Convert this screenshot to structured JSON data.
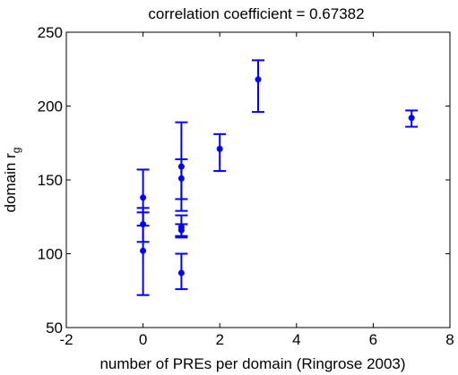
{
  "chart_data": {
    "type": "scatter",
    "title": "correlation coefficient = 0.67382",
    "xlabel": "number of PREs per domain (Ringrose 2003)",
    "ylabel": "domain r",
    "ylabel_subscript": "g",
    "xlim": [
      -2,
      8
    ],
    "ylim": [
      50,
      250
    ],
    "xticks": [
      -2,
      0,
      2,
      4,
      6,
      8
    ],
    "yticks": [
      50,
      100,
      150,
      200,
      250
    ],
    "grid": false,
    "marker_color": "#0000ff",
    "points": [
      {
        "x": 0,
        "y": 138,
        "err_low": 119,
        "err_high": 157
      },
      {
        "x": 0,
        "y": 120,
        "err_low": 108,
        "err_high": 131
      },
      {
        "x": 0,
        "y": 102,
        "err_low": 72,
        "err_high": 128
      },
      {
        "x": 1,
        "y": 159,
        "err_low": 129,
        "err_high": 189
      },
      {
        "x": 1,
        "y": 151,
        "err_low": 137,
        "err_high": 164
      },
      {
        "x": 1,
        "y": 118,
        "err_low": 111,
        "err_high": 126
      },
      {
        "x": 1,
        "y": 116,
        "err_low": 112,
        "err_high": 120
      },
      {
        "x": 1,
        "y": 87,
        "err_low": 76,
        "err_high": 100
      },
      {
        "x": 2,
        "y": 171,
        "err_low": 156,
        "err_high": 181
      },
      {
        "x": 3,
        "y": 218,
        "err_low": 196,
        "err_high": 231
      },
      {
        "x": 7,
        "y": 192,
        "err_low": 186,
        "err_high": 197
      }
    ]
  }
}
